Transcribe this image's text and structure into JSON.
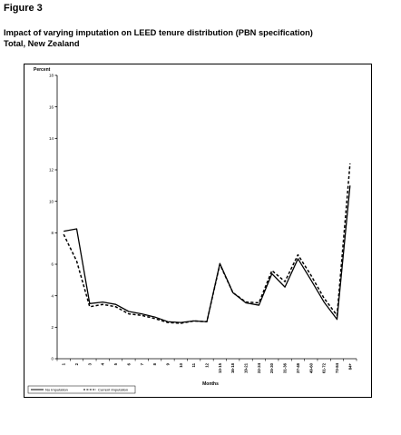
{
  "figure_label": "Figure 3",
  "title_line1": "Impact of varying imputation on LEED tenure distribution (PBN specification)",
  "title_line2": "Total, New Zealand",
  "chart_data": {
    "type": "line",
    "title": "",
    "ylabel": "Percent",
    "xlabel": "Months",
    "ylim": [
      0,
      18
    ],
    "yticks": [
      0,
      2,
      4,
      6,
      8,
      10,
      12,
      14,
      16,
      18
    ],
    "categories": [
      "1",
      "2",
      "3",
      "4",
      "5",
      "6",
      "7",
      "8",
      "9",
      "10",
      "11",
      "12",
      "13-15",
      "16-18",
      "19-21",
      "22-24",
      "25-30",
      "31-36",
      "37-48",
      "49-60",
      "61-72",
      "73-84",
      "84+"
    ],
    "series": [
      {
        "name": "No Imputation",
        "style": "solid",
        "color": "#000000",
        "values": [
          8.1,
          8.25,
          3.5,
          3.6,
          3.45,
          3.0,
          2.85,
          2.65,
          2.35,
          2.3,
          2.4,
          2.35,
          6.05,
          4.2,
          3.55,
          3.4,
          5.4,
          4.55,
          6.35,
          5.0,
          3.6,
          2.5,
          11.0
        ]
      },
      {
        "name": "Current Imputation",
        "style": "dashed",
        "color": "#000000",
        "values": [
          7.9,
          6.2,
          3.3,
          3.45,
          3.3,
          2.85,
          2.75,
          2.55,
          2.3,
          2.25,
          2.4,
          2.35,
          6.0,
          4.2,
          3.6,
          3.55,
          5.6,
          4.9,
          6.6,
          5.3,
          3.85,
          2.75,
          12.4
        ]
      }
    ],
    "grid": false,
    "legend_position": "bottom-left"
  }
}
